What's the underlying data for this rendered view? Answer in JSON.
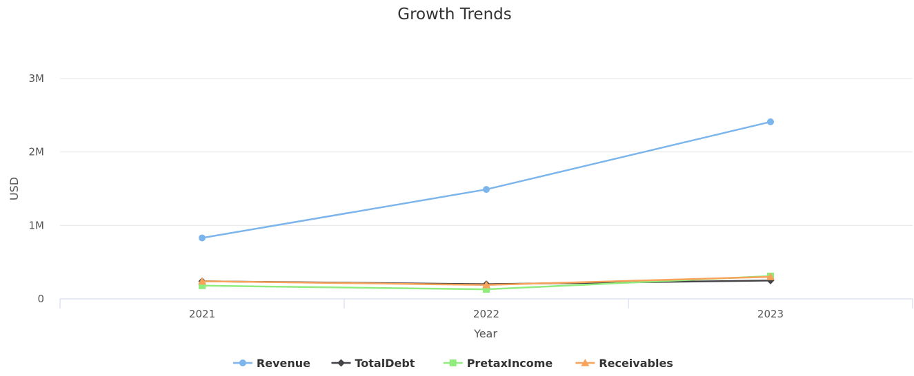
{
  "chart_data": {
    "type": "line",
    "title": "Growth Trends",
    "xlabel": "Year",
    "ylabel": "USD",
    "categories": [
      "2021",
      "2022",
      "2023"
    ],
    "ylim": [
      0,
      3000000
    ],
    "yticks": [
      {
        "value": 0,
        "label": "0"
      },
      {
        "value": 1000000,
        "label": "1M"
      },
      {
        "value": 2000000,
        "label": "2M"
      },
      {
        "value": 3000000,
        "label": "3M"
      }
    ],
    "grid": true,
    "legend_position": "bottom-center",
    "series": [
      {
        "name": "Revenue",
        "color": "#7cb5ec",
        "marker": "circle",
        "values": [
          830000,
          1490000,
          2410000
        ]
      },
      {
        "name": "TotalDebt",
        "color": "#434348",
        "marker": "diamond",
        "values": [
          240000,
          200000,
          250000
        ]
      },
      {
        "name": "PretaxIncome",
        "color": "#90ed7d",
        "marker": "square",
        "values": [
          180000,
          130000,
          310000
        ]
      },
      {
        "name": "Receivables",
        "color": "#f7a35c",
        "marker": "triangle",
        "values": [
          240000,
          190000,
          300000
        ]
      }
    ]
  }
}
